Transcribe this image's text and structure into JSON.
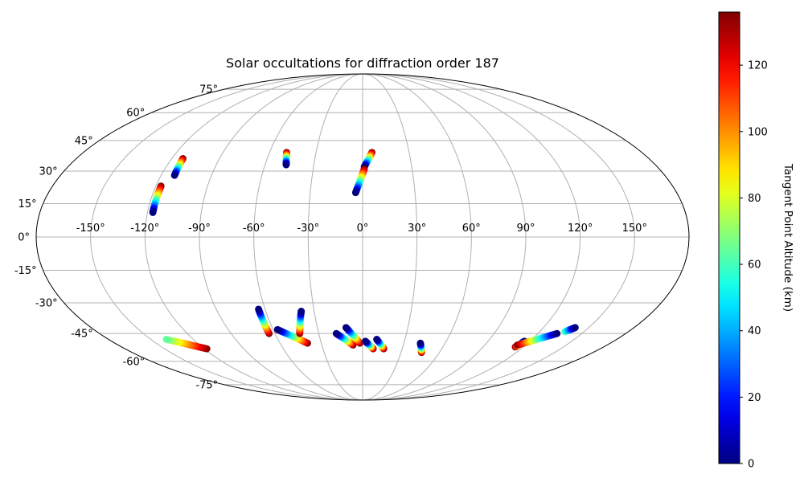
{
  "chart_data": {
    "type": "scatter",
    "projection": "mollweide",
    "title": "Solar occultations for diffraction order 187",
    "xlabel": "",
    "ylabel": "",
    "xlim": [
      -180,
      180
    ],
    "ylim": [
      -90,
      90
    ],
    "grid": true,
    "lon_ticks": [
      -150,
      -120,
      -90,
      -60,
      -30,
      0,
      30,
      60,
      90,
      120,
      150
    ],
    "lon_tick_labels": [
      "-150°",
      "-120°",
      "-90°",
      "-60°",
      "-30°",
      "0°",
      "30°",
      "60°",
      "90°",
      "120°",
      "150°"
    ],
    "lat_ticks": [
      75,
      60,
      45,
      30,
      15,
      0,
      -15,
      -30,
      -45,
      -60,
      -75
    ],
    "lat_tick_labels": [
      "75°",
      "60°",
      "45°",
      "30°",
      "15°",
      "0°",
      "-15°",
      "-30°",
      "-45°",
      "-60°",
      "-75°"
    ],
    "colorbar": {
      "label": "Tangent Point Altitude (km)",
      "colormap": "jet",
      "range": [
        0,
        136
      ],
      "ticks": [
        0,
        20,
        40,
        60,
        80,
        100,
        120
      ],
      "tick_labels": [
        "0",
        "20",
        "40",
        "60",
        "80",
        "100",
        "120"
      ]
    },
    "series": [
      {
        "start": [
          -113,
          36
        ],
        "end": [
          -112,
          28
        ],
        "alt_start": 136,
        "alt_end": 0
      },
      {
        "start": [
          -117,
          23
        ],
        "end": [
          -117,
          11
        ],
        "alt_start": 136,
        "alt_end": 0
      },
      {
        "start": [
          -49,
          39
        ],
        "end": [
          -47,
          33
        ],
        "alt_start": 136,
        "alt_end": 0
      },
      {
        "start": [
          6,
          39
        ],
        "end": [
          1,
          32
        ],
        "alt_start": 136,
        "alt_end": 0
      },
      {
        "start": [
          1,
          31
        ],
        "end": [
          -4,
          20
        ],
        "alt_start": 136,
        "alt_end": 0
      },
      {
        "start": [
          -118,
          -53
        ],
        "end": [
          -139,
          -48
        ],
        "alt_start": 136,
        "alt_end": 64
      },
      {
        "start": [
          -64,
          -45
        ],
        "end": [
          -64,
          -33
        ],
        "alt_start": 136,
        "alt_end": 0
      },
      {
        "start": [
          -40,
          -50
        ],
        "end": [
          -57,
          -43
        ],
        "alt_start": 136,
        "alt_end": 0
      },
      {
        "start": [
          -43,
          -45
        ],
        "end": [
          -38,
          -34
        ],
        "alt_start": 136,
        "alt_end": 0
      },
      {
        "start": [
          -7,
          -51
        ],
        "end": [
          -18,
          -45
        ],
        "alt_start": 136,
        "alt_end": 0
      },
      {
        "start": [
          -2,
          -50
        ],
        "end": [
          -11,
          -42
        ],
        "alt_start": 136,
        "alt_end": 0
      },
      {
        "start": [
          8,
          -53
        ],
        "end": [
          2,
          -49
        ],
        "alt_start": 136,
        "alt_end": 0
      },
      {
        "start": [
          16,
          -53
        ],
        "end": [
          10,
          -48
        ],
        "alt_start": 136,
        "alt_end": 0
      },
      {
        "start": [
          46,
          -55
        ],
        "end": [
          42,
          -50
        ],
        "alt_start": 136,
        "alt_end": 0
      },
      {
        "start": [
          114,
          -52
        ],
        "end": [
          116,
          -49
        ],
        "alt_start": 136,
        "alt_end": 0
      },
      {
        "start": [
          114,
          -51
        ],
        "end": [
          133,
          -45
        ],
        "alt_start": 136,
        "alt_end": 0
      },
      {
        "start": [
          137,
          -44
        ],
        "end": [
          141,
          -42
        ],
        "alt_start": 64,
        "alt_end": 0
      }
    ]
  }
}
